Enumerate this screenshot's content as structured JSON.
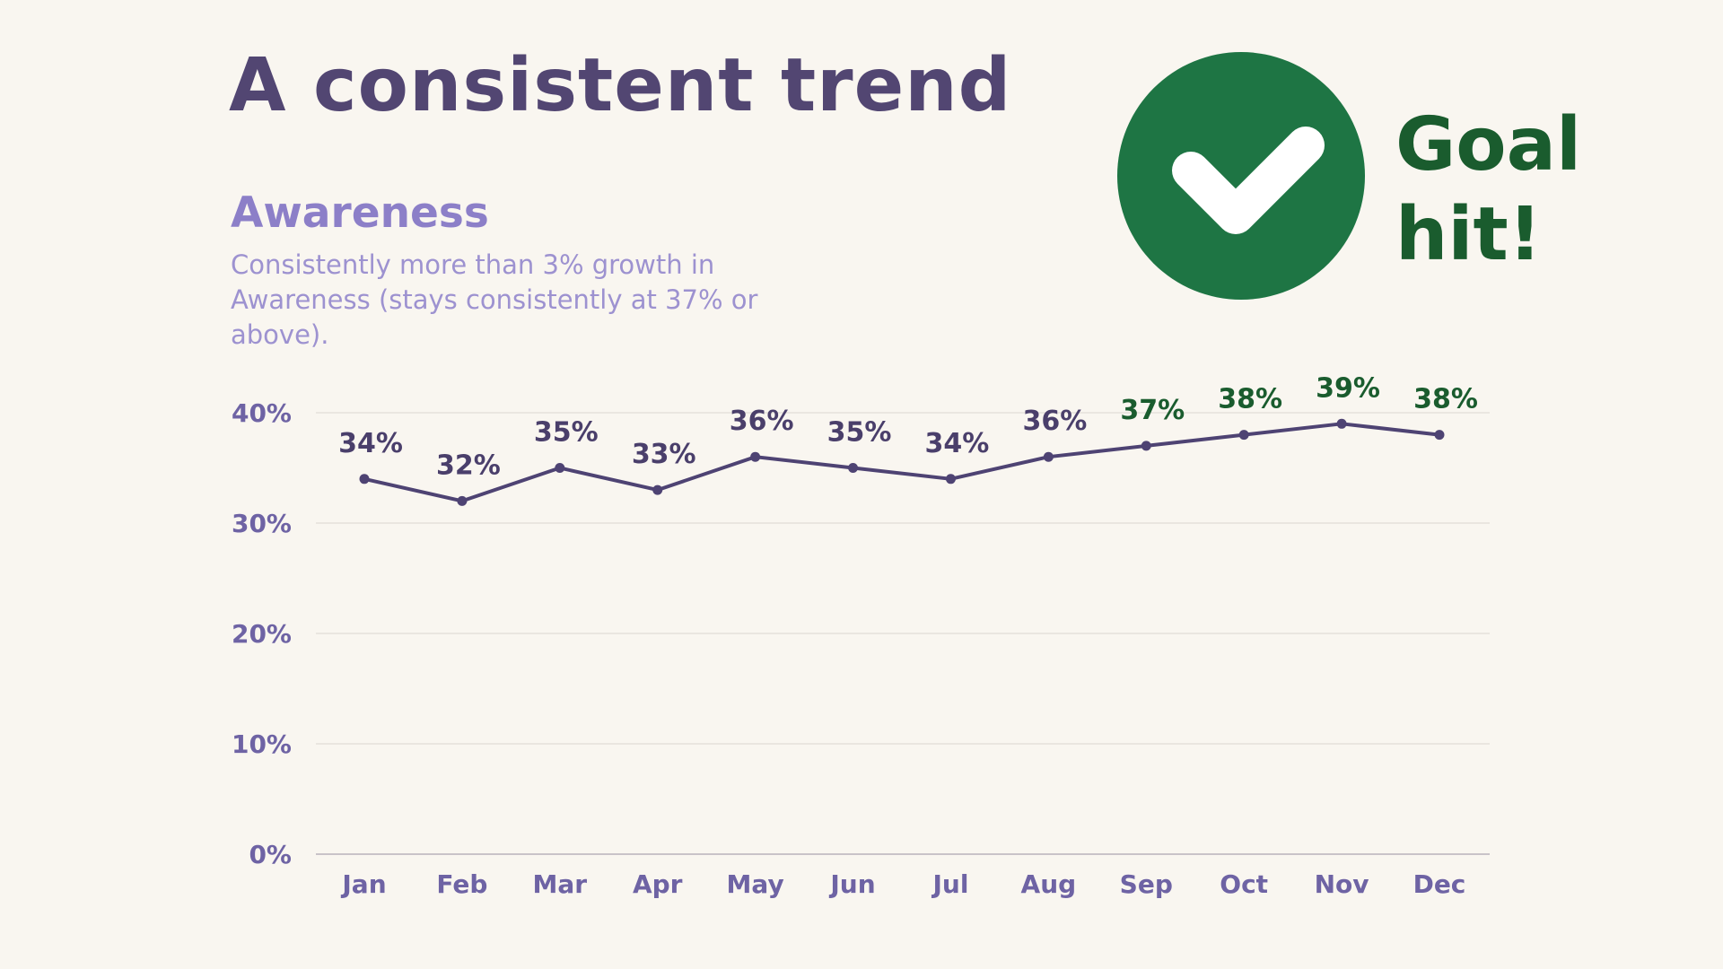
{
  "slide": {
    "title": "A consistent trend",
    "subtitle": "Awareness",
    "description": "Consistently more than 3% growth in Awareness (stays consistently at 37% or above).",
    "goal_text": "Goal hit!",
    "badge_icon": "checkmark-icon"
  },
  "colors": {
    "background": "#f9f6f0",
    "title": "#524672",
    "subtitle": "#8c7fc8",
    "line": "#4e4373",
    "label_below_goal": "#4a3f6b",
    "label_goal_hit": "#1a5c2e",
    "badge": "#1e7544",
    "axis_label": "#6e63a4",
    "grid": "#e2ddd6"
  },
  "chart_data": {
    "type": "line",
    "title": "Awareness",
    "xlabel": "",
    "ylabel": "",
    "categories": [
      "Jan",
      "Feb",
      "Mar",
      "Apr",
      "May",
      "Jun",
      "Jul",
      "Aug",
      "Sep",
      "Oct",
      "Nov",
      "Dec"
    ],
    "series": [
      {
        "name": "Awareness",
        "values": [
          34,
          32,
          35,
          33,
          36,
          35,
          34,
          36,
          37,
          38,
          39,
          38
        ]
      }
    ],
    "data_labels": [
      "34%",
      "32%",
      "35%",
      "33%",
      "36%",
      "35%",
      "34%",
      "36%",
      "37%",
      "38%",
      "39%",
      "38%"
    ],
    "goal_threshold": 37,
    "ylim": [
      0,
      40
    ],
    "yticks": [
      0,
      10,
      20,
      30,
      40
    ],
    "ytick_labels": [
      "0%",
      "10%",
      "20%",
      "30%",
      "40%"
    ],
    "grid": true
  }
}
